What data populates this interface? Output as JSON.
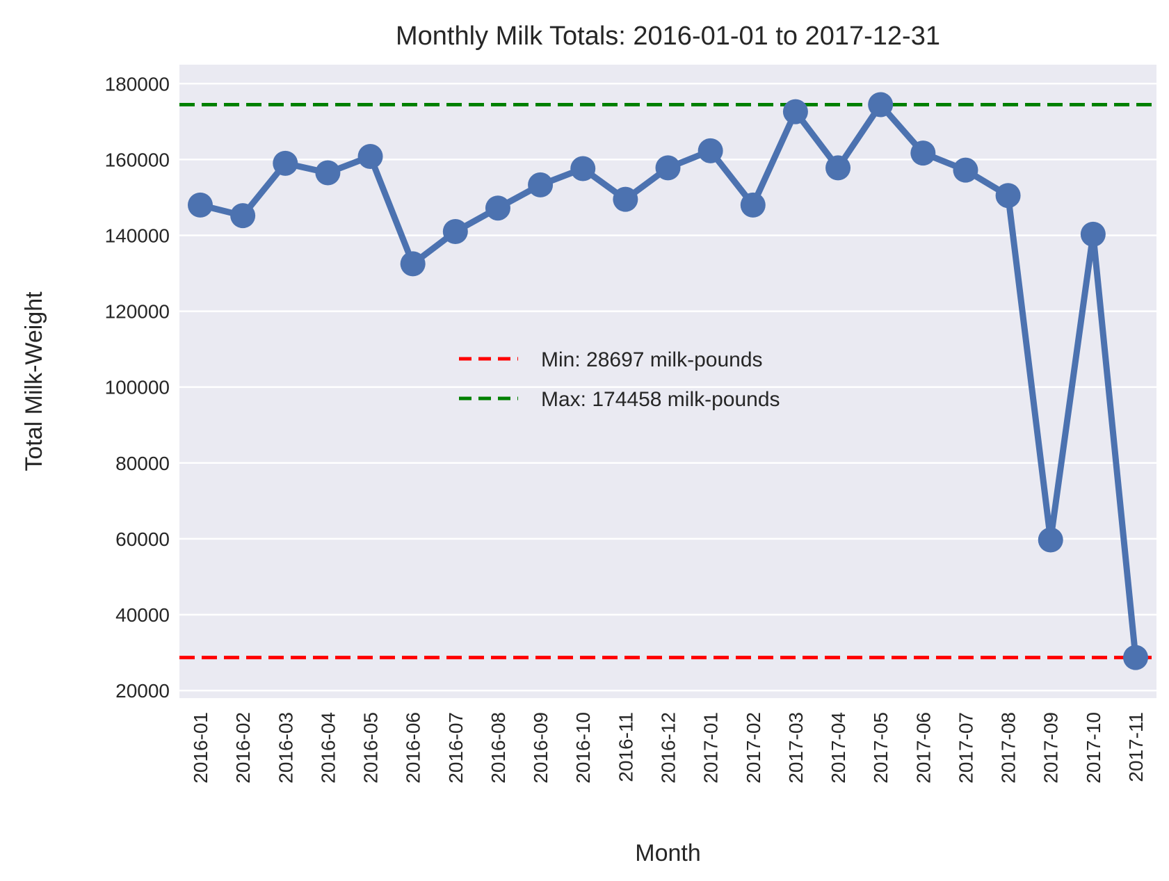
{
  "chart_data": {
    "type": "line",
    "title": "Monthly Milk Totals: 2016-01-01 to 2017-12-31",
    "xlabel": "Month",
    "ylabel": "Total Milk-Weight",
    "categories": [
      "2016-01",
      "2016-02",
      "2016-03",
      "2016-04",
      "2016-05",
      "2016-06",
      "2016-07",
      "2016-08",
      "2016-09",
      "2016-10",
      "2016-11",
      "2016-12",
      "2017-01",
      "2017-02",
      "2017-03",
      "2017-04",
      "2017-05",
      "2017-06",
      "2017-07",
      "2017-08",
      "2017-09",
      "2017-10",
      "2017-11"
    ],
    "series": [
      {
        "values": [
          148000,
          145200,
          159000,
          156500,
          160800,
          132500,
          141000,
          147200,
          153300,
          157600,
          149500,
          157800,
          162300,
          148000,
          172600,
          157800,
          174458,
          161700,
          157200,
          150500,
          59700,
          140300,
          28697
        ],
        "color": "#4c72b0"
      }
    ],
    "reference_lines": [
      {
        "label": "Min: 28697 milk-pounds",
        "value": 28697,
        "color": "#ff0000",
        "style": "dashed"
      },
      {
        "label": "Max: 174458 milk-pounds",
        "value": 174458,
        "color": "#008000",
        "style": "dashed"
      }
    ],
    "ylim": [
      18000,
      185000
    ],
    "yticks": [
      20000,
      40000,
      60000,
      80000,
      100000,
      120000,
      140000,
      160000,
      180000
    ],
    "grid": true,
    "legend_position": "center",
    "background": "#eaeaf2"
  }
}
